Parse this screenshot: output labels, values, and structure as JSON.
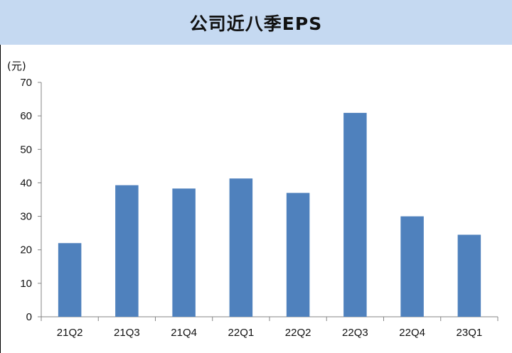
{
  "chart_data": {
    "type": "bar",
    "title": "公司近八季EPS",
    "unit_label": "(元)",
    "categories": [
      "21Q2",
      "21Q3",
      "21Q4",
      "22Q1",
      "22Q2",
      "22Q3",
      "22Q4",
      "23Q1"
    ],
    "values": [
      22,
      39.3,
      38.3,
      41.3,
      37,
      60.9,
      30,
      24.5
    ],
    "ylim": [
      0,
      70
    ],
    "yticks": [
      "0",
      "10",
      "20",
      "30",
      "40",
      "50",
      "60",
      "70"
    ],
    "grid": false,
    "legend": "none",
    "bar_color": "#4f81bd",
    "title_bg": "#c5d9f1"
  }
}
